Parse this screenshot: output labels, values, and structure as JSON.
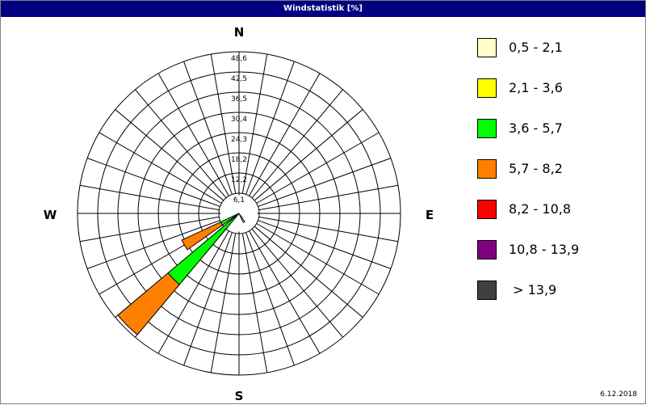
{
  "window": {
    "title": "Windstatistik [%]",
    "date": "6.12.2018"
  },
  "chart_data": {
    "type": "wind-rose",
    "title": "Windstatistik [%]",
    "compass_labels": {
      "N": "N",
      "E": "E",
      "S": "S",
      "W": "W"
    },
    "radial_ticks": [
      "6,1",
      "12,2",
      "18,2",
      "24,3",
      "30,4",
      "36,5",
      "42,5",
      "48,6"
    ],
    "radial_max": 48.6,
    "sector_width_deg": 10,
    "grid": true,
    "legend_position": "right",
    "classes": [
      {
        "label": "0,5 - 2,1",
        "color": "#FFFFC8"
      },
      {
        "label": "2,1 - 3,6",
        "color": "#FFFF00"
      },
      {
        "label": "3,6 - 5,7",
        "color": "#00FF00"
      },
      {
        "label": "5,7 - 8,2",
        "color": "#FF8000"
      },
      {
        "label": "8,2 - 10,8",
        "color": "#FF0000"
      },
      {
        "label": "10,8 - 13,9",
        "color": "#800080"
      },
      {
        "label": " > 13,9",
        "color": "#404040"
      }
    ],
    "petals": [
      {
        "direction_deg": 225,
        "segments": [
          {
            "class": 2,
            "cumulative": 27.9
          },
          {
            "class": 3,
            "cumulative": 47.6
          }
        ]
      },
      {
        "direction_deg": 240,
        "segments": [
          {
            "class": 2,
            "cumulative": 6.1
          },
          {
            "class": 3,
            "cumulative": 19.0
          }
        ]
      },
      {
        "direction_deg": 150,
        "segments": [
          {
            "class": 0,
            "cumulative": 3.0
          }
        ]
      }
    ]
  }
}
